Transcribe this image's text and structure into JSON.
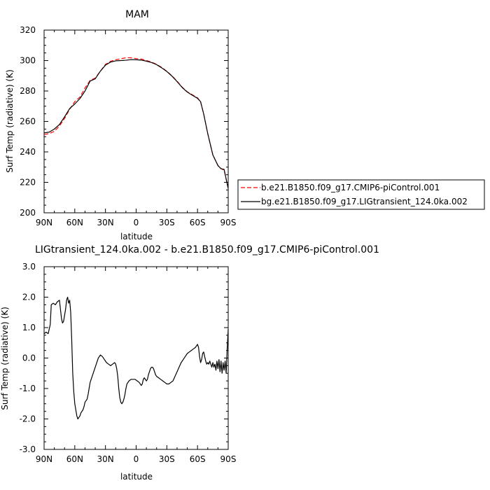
{
  "chart_data": [
    {
      "type": "line",
      "title": "MAM",
      "xlabel": "latitude",
      "ylabel": "Surf Temp (radiative) (K)",
      "xlim": [
        90,
        -90
      ],
      "ylim": [
        200,
        320
      ],
      "x_tick_labels": [
        "90N",
        "60N",
        "30N",
        "0",
        "30S",
        "60S",
        "90S"
      ],
      "x_tick_values": [
        90,
        60,
        30,
        0,
        -30,
        -60,
        -90
      ],
      "y_tick_values": [
        200,
        220,
        240,
        260,
        280,
        300,
        320
      ],
      "y_tick_labels": [
        "200",
        "220",
        "240",
        "260",
        "280",
        "300",
        "320"
      ],
      "legend_position": "right",
      "series": [
        {
          "name": "b.e21.B1850.f09_g17.CMIP6-piControl.001",
          "color": "#ff0000",
          "dash": "dashed",
          "points": [
            [
              90,
              251.5
            ],
            [
              85,
              252
            ],
            [
              80,
              253.5
            ],
            [
              75,
              257
            ],
            [
              70,
              262
            ],
            [
              65,
              268
            ],
            [
              60,
              273
            ],
            [
              55,
              276
            ],
            [
              50,
              282
            ],
            [
              45,
              287
            ],
            [
              40,
              288.5
            ],
            [
              35,
              293
            ],
            [
              30,
              297.5
            ],
            [
              25,
              299.5
            ],
            [
              20,
              300.5
            ],
            [
              15,
              301.2
            ],
            [
              10,
              301.8
            ],
            [
              5,
              301.8
            ],
            [
              0,
              301.3
            ],
            [
              -5,
              301
            ],
            [
              -10,
              300
            ],
            [
              -15,
              299
            ],
            [
              -20,
              297.5
            ],
            [
              -25,
              295.5
            ],
            [
              -30,
              293
            ],
            [
              -35,
              290
            ],
            [
              -40,
              286.5
            ],
            [
              -45,
              282.5
            ],
            [
              -50,
              279.5
            ],
            [
              -55,
              277.5
            ],
            [
              -60,
              275.5
            ],
            [
              -63,
              273
            ],
            [
              -66,
              265
            ],
            [
              -70,
              252
            ],
            [
              -75,
              238
            ],
            [
              -80,
              231
            ],
            [
              -83,
              229
            ],
            [
              -86,
              228
            ],
            [
              -90,
              216
            ]
          ]
        },
        {
          "name": "bg.e21.B1850.f09_g17.LIGtransient_124.0ka.002",
          "color": "#000000",
          "dash": "solid",
          "points": [
            [
              90,
              252.5
            ],
            [
              85,
              253
            ],
            [
              80,
              255
            ],
            [
              75,
              258
            ],
            [
              70,
              263
            ],
            [
              65,
              268.5
            ],
            [
              60,
              271.5
            ],
            [
              55,
              275
            ],
            [
              50,
              280
            ],
            [
              45,
              286.5
            ],
            [
              40,
              288
            ],
            [
              35,
              293
            ],
            [
              30,
              297
            ],
            [
              25,
              299
            ],
            [
              20,
              299.8
            ],
            [
              15,
              300
            ],
            [
              10,
              300.2
            ],
            [
              5,
              300.6
            ],
            [
              0,
              300.5
            ],
            [
              -5,
              300.3
            ],
            [
              -10,
              299.6
            ],
            [
              -15,
              298.7
            ],
            [
              -20,
              297.3
            ],
            [
              -25,
              295.2
            ],
            [
              -30,
              292.8
            ],
            [
              -35,
              289.8
            ],
            [
              -40,
              286.2
            ],
            [
              -45,
              282.3
            ],
            [
              -50,
              279.3
            ],
            [
              -55,
              277.2
            ],
            [
              -60,
              275.2
            ],
            [
              -63,
              273
            ],
            [
              -66,
              265
            ],
            [
              -70,
              252
            ],
            [
              -75,
              238
            ],
            [
              -80,
              231
            ],
            [
              -83,
              229
            ],
            [
              -86,
              228.5
            ],
            [
              -90,
              216
            ]
          ]
        }
      ]
    },
    {
      "type": "line",
      "title": "LIGtransient_124.0ka.002 - b.e21.B1850.f09_g17.CMIP6-piControl.001",
      "xlabel": "latitude",
      "ylabel": "Surf Temp (radiative) (K)",
      "xlim": [
        90,
        -90
      ],
      "ylim": [
        -3.0,
        3.0
      ],
      "x_tick_labels": [
        "90N",
        "60N",
        "30N",
        "0",
        "30S",
        "60S",
        "90S"
      ],
      "x_tick_values": [
        90,
        60,
        30,
        0,
        -30,
        -60,
        -90
      ],
      "y_tick_values": [
        -3.0,
        -2.0,
        -1.0,
        0.0,
        1.0,
        2.0,
        3.0
      ],
      "y_tick_labels": [
        "-3.0",
        "-2.0",
        "-1.0",
        "0.0",
        "1.0",
        "2.0",
        "3.0"
      ],
      "series": [
        {
          "color": "#000000",
          "points": [
            [
              90,
              0.8
            ],
            [
              88,
              0.85
            ],
            [
              86,
              0.8
            ],
            [
              84,
              1.1
            ],
            [
              83,
              1.75
            ],
            [
              81,
              1.8
            ],
            [
              79,
              1.75
            ],
            [
              77,
              1.85
            ],
            [
              75,
              1.9
            ],
            [
              74,
              1.6
            ],
            [
              73,
              1.3
            ],
            [
              72,
              1.15
            ],
            [
              71,
              1.2
            ],
            [
              70,
              1.4
            ],
            [
              69,
              1.6
            ],
            [
              68,
              1.9
            ],
            [
              67,
              2.0
            ],
            [
              66,
              1.8
            ],
            [
              65,
              1.9
            ],
            [
              64,
              1.5
            ],
            [
              63,
              0.6
            ],
            [
              62,
              -0.5
            ],
            [
              61,
              -1.1
            ],
            [
              60,
              -1.5
            ],
            [
              59,
              -1.7
            ],
            [
              58,
              -1.9
            ],
            [
              57,
              -2.0
            ],
            [
              56,
              -1.95
            ],
            [
              55,
              -1.9
            ],
            [
              54,
              -1.8
            ],
            [
              53,
              -1.75
            ],
            [
              52,
              -1.7
            ],
            [
              51,
              -1.6
            ],
            [
              50,
              -1.45
            ],
            [
              49,
              -1.4
            ],
            [
              48,
              -1.35
            ],
            [
              47,
              -1.2
            ],
            [
              46,
              -1.0
            ],
            [
              45,
              -0.8
            ],
            [
              43,
              -0.6
            ],
            [
              41,
              -0.4
            ],
            [
              39,
              -0.2
            ],
            [
              37,
              0.0
            ],
            [
              35,
              0.1
            ],
            [
              33,
              0.05
            ],
            [
              31,
              -0.05
            ],
            [
              29,
              -0.15
            ],
            [
              27,
              -0.2
            ],
            [
              25,
              -0.25
            ],
            [
              23,
              -0.2
            ],
            [
              21,
              -0.15
            ],
            [
              20,
              -0.2
            ],
            [
              19,
              -0.35
            ],
            [
              18,
              -0.6
            ],
            [
              17,
              -1.0
            ],
            [
              16,
              -1.3
            ],
            [
              15,
              -1.45
            ],
            [
              14,
              -1.5
            ],
            [
              13,
              -1.45
            ],
            [
              12,
              -1.35
            ],
            [
              11,
              -1.2
            ],
            [
              10,
              -1.0
            ],
            [
              9,
              -0.85
            ],
            [
              8,
              -0.8
            ],
            [
              7,
              -0.75
            ],
            [
              5,
              -0.7
            ],
            [
              3,
              -0.7
            ],
            [
              1,
              -0.7
            ],
            [
              -1,
              -0.75
            ],
            [
              -3,
              -0.8
            ],
            [
              -5,
              -0.9
            ],
            [
              -6,
              -0.85
            ],
            [
              -7,
              -0.7
            ],
            [
              -8,
              -0.65
            ],
            [
              -9,
              -0.7
            ],
            [
              -10,
              -0.75
            ],
            [
              -11,
              -0.7
            ],
            [
              -12,
              -0.55
            ],
            [
              -13,
              -0.45
            ],
            [
              -14,
              -0.35
            ],
            [
              -15,
              -0.3
            ],
            [
              -16,
              -0.3
            ],
            [
              -17,
              -0.35
            ],
            [
              -18,
              -0.45
            ],
            [
              -19,
              -0.55
            ],
            [
              -20,
              -0.6
            ],
            [
              -22,
              -0.65
            ],
            [
              -24,
              -0.7
            ],
            [
              -26,
              -0.75
            ],
            [
              -28,
              -0.8
            ],
            [
              -30,
              -0.85
            ],
            [
              -32,
              -0.85
            ],
            [
              -34,
              -0.8
            ],
            [
              -36,
              -0.75
            ],
            [
              -38,
              -0.6
            ],
            [
              -40,
              -0.45
            ],
            [
              -42,
              -0.3
            ],
            [
              -44,
              -0.15
            ],
            [
              -46,
              -0.05
            ],
            [
              -48,
              0.05
            ],
            [
              -50,
              0.15
            ],
            [
              -52,
              0.2
            ],
            [
              -54,
              0.25
            ],
            [
              -56,
              0.3
            ],
            [
              -58,
              0.35
            ],
            [
              -59,
              0.4
            ],
            [
              -60,
              0.45
            ],
            [
              -61,
              0.35
            ],
            [
              -62,
              0.05
            ],
            [
              -63,
              -0.15
            ],
            [
              -64,
              -0.05
            ],
            [
              -65,
              0.15
            ],
            [
              -66,
              0.2
            ],
            [
              -67,
              0.05
            ],
            [
              -68,
              -0.1
            ],
            [
              -69,
              -0.2
            ],
            [
              -70,
              -0.15
            ],
            [
              -71,
              -0.2
            ],
            [
              -72,
              -0.1
            ],
            [
              -73,
              -0.2
            ],
            [
              -74,
              -0.3
            ],
            [
              -75,
              -0.15
            ],
            [
              -76,
              -0.3
            ],
            [
              -77,
              -0.2
            ],
            [
              -78,
              -0.4
            ],
            [
              -79,
              -0.1
            ],
            [
              -80,
              -0.35
            ],
            [
              -81,
              -0.05
            ],
            [
              -82,
              -0.45
            ],
            [
              -83,
              -0.1
            ],
            [
              -84,
              -0.5
            ],
            [
              -85,
              -0.15
            ],
            [
              -86,
              -0.4
            ],
            [
              -87,
              -0.1
            ],
            [
              -88,
              -0.5
            ],
            [
              -89,
              0.3
            ],
            [
              -90,
              0.95
            ]
          ]
        }
      ]
    }
  ]
}
